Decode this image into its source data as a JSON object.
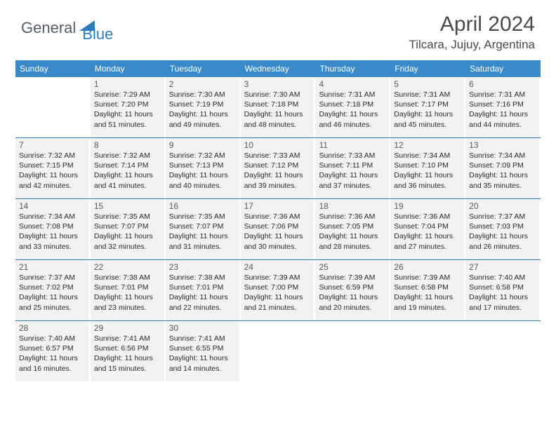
{
  "brand": {
    "part1": "General",
    "part2": "Blue"
  },
  "month_title": "April 2024",
  "location": "Tilcara, Jujuy, Argentina",
  "colors": {
    "header_bg": "#3a8ac9",
    "accent": "#2f7bbf",
    "cell_bg": "#f2f2f2",
    "text_muted": "#555b62"
  },
  "day_headers": [
    "Sunday",
    "Monday",
    "Tuesday",
    "Wednesday",
    "Thursday",
    "Friday",
    "Saturday"
  ],
  "weeks": [
    [
      null,
      {
        "n": "1",
        "sr": "Sunrise: 7:29 AM",
        "ss": "Sunset: 7:20 PM",
        "d1": "Daylight: 11 hours",
        "d2": "and 51 minutes."
      },
      {
        "n": "2",
        "sr": "Sunrise: 7:30 AM",
        "ss": "Sunset: 7:19 PM",
        "d1": "Daylight: 11 hours",
        "d2": "and 49 minutes."
      },
      {
        "n": "3",
        "sr": "Sunrise: 7:30 AM",
        "ss": "Sunset: 7:18 PM",
        "d1": "Daylight: 11 hours",
        "d2": "and 48 minutes."
      },
      {
        "n": "4",
        "sr": "Sunrise: 7:31 AM",
        "ss": "Sunset: 7:18 PM",
        "d1": "Daylight: 11 hours",
        "d2": "and 46 minutes."
      },
      {
        "n": "5",
        "sr": "Sunrise: 7:31 AM",
        "ss": "Sunset: 7:17 PM",
        "d1": "Daylight: 11 hours",
        "d2": "and 45 minutes."
      },
      {
        "n": "6",
        "sr": "Sunrise: 7:31 AM",
        "ss": "Sunset: 7:16 PM",
        "d1": "Daylight: 11 hours",
        "d2": "and 44 minutes."
      }
    ],
    [
      {
        "n": "7",
        "sr": "Sunrise: 7:32 AM",
        "ss": "Sunset: 7:15 PM",
        "d1": "Daylight: 11 hours",
        "d2": "and 42 minutes."
      },
      {
        "n": "8",
        "sr": "Sunrise: 7:32 AM",
        "ss": "Sunset: 7:14 PM",
        "d1": "Daylight: 11 hours",
        "d2": "and 41 minutes."
      },
      {
        "n": "9",
        "sr": "Sunrise: 7:32 AM",
        "ss": "Sunset: 7:13 PM",
        "d1": "Daylight: 11 hours",
        "d2": "and 40 minutes."
      },
      {
        "n": "10",
        "sr": "Sunrise: 7:33 AM",
        "ss": "Sunset: 7:12 PM",
        "d1": "Daylight: 11 hours",
        "d2": "and 39 minutes."
      },
      {
        "n": "11",
        "sr": "Sunrise: 7:33 AM",
        "ss": "Sunset: 7:11 PM",
        "d1": "Daylight: 11 hours",
        "d2": "and 37 minutes."
      },
      {
        "n": "12",
        "sr": "Sunrise: 7:34 AM",
        "ss": "Sunset: 7:10 PM",
        "d1": "Daylight: 11 hours",
        "d2": "and 36 minutes."
      },
      {
        "n": "13",
        "sr": "Sunrise: 7:34 AM",
        "ss": "Sunset: 7:09 PM",
        "d1": "Daylight: 11 hours",
        "d2": "and 35 minutes."
      }
    ],
    [
      {
        "n": "14",
        "sr": "Sunrise: 7:34 AM",
        "ss": "Sunset: 7:08 PM",
        "d1": "Daylight: 11 hours",
        "d2": "and 33 minutes."
      },
      {
        "n": "15",
        "sr": "Sunrise: 7:35 AM",
        "ss": "Sunset: 7:07 PM",
        "d1": "Daylight: 11 hours",
        "d2": "and 32 minutes."
      },
      {
        "n": "16",
        "sr": "Sunrise: 7:35 AM",
        "ss": "Sunset: 7:07 PM",
        "d1": "Daylight: 11 hours",
        "d2": "and 31 minutes."
      },
      {
        "n": "17",
        "sr": "Sunrise: 7:36 AM",
        "ss": "Sunset: 7:06 PM",
        "d1": "Daylight: 11 hours",
        "d2": "and 30 minutes."
      },
      {
        "n": "18",
        "sr": "Sunrise: 7:36 AM",
        "ss": "Sunset: 7:05 PM",
        "d1": "Daylight: 11 hours",
        "d2": "and 28 minutes."
      },
      {
        "n": "19",
        "sr": "Sunrise: 7:36 AM",
        "ss": "Sunset: 7:04 PM",
        "d1": "Daylight: 11 hours",
        "d2": "and 27 minutes."
      },
      {
        "n": "20",
        "sr": "Sunrise: 7:37 AM",
        "ss": "Sunset: 7:03 PM",
        "d1": "Daylight: 11 hours",
        "d2": "and 26 minutes."
      }
    ],
    [
      {
        "n": "21",
        "sr": "Sunrise: 7:37 AM",
        "ss": "Sunset: 7:02 PM",
        "d1": "Daylight: 11 hours",
        "d2": "and 25 minutes."
      },
      {
        "n": "22",
        "sr": "Sunrise: 7:38 AM",
        "ss": "Sunset: 7:01 PM",
        "d1": "Daylight: 11 hours",
        "d2": "and 23 minutes."
      },
      {
        "n": "23",
        "sr": "Sunrise: 7:38 AM",
        "ss": "Sunset: 7:01 PM",
        "d1": "Daylight: 11 hours",
        "d2": "and 22 minutes."
      },
      {
        "n": "24",
        "sr": "Sunrise: 7:39 AM",
        "ss": "Sunset: 7:00 PM",
        "d1": "Daylight: 11 hours",
        "d2": "and 21 minutes."
      },
      {
        "n": "25",
        "sr": "Sunrise: 7:39 AM",
        "ss": "Sunset: 6:59 PM",
        "d1": "Daylight: 11 hours",
        "d2": "and 20 minutes."
      },
      {
        "n": "26",
        "sr": "Sunrise: 7:39 AM",
        "ss": "Sunset: 6:58 PM",
        "d1": "Daylight: 11 hours",
        "d2": "and 19 minutes."
      },
      {
        "n": "27",
        "sr": "Sunrise: 7:40 AM",
        "ss": "Sunset: 6:58 PM",
        "d1": "Daylight: 11 hours",
        "d2": "and 17 minutes."
      }
    ],
    [
      {
        "n": "28",
        "sr": "Sunrise: 7:40 AM",
        "ss": "Sunset: 6:57 PM",
        "d1": "Daylight: 11 hours",
        "d2": "and 16 minutes."
      },
      {
        "n": "29",
        "sr": "Sunrise: 7:41 AM",
        "ss": "Sunset: 6:56 PM",
        "d1": "Daylight: 11 hours",
        "d2": "and 15 minutes."
      },
      {
        "n": "30",
        "sr": "Sunrise: 7:41 AM",
        "ss": "Sunset: 6:55 PM",
        "d1": "Daylight: 11 hours",
        "d2": "and 14 minutes."
      },
      null,
      null,
      null,
      null
    ]
  ]
}
